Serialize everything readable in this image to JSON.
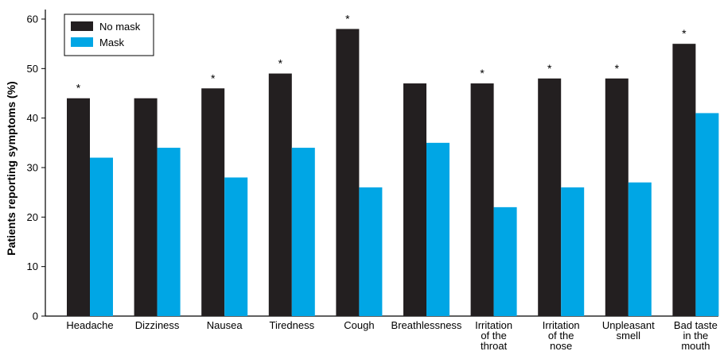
{
  "chart_data": {
    "type": "bar",
    "ylabel": "Patients reporting symptoms (%)",
    "xlabel": "",
    "ylim": [
      0,
      60
    ],
    "yticks": [
      "0",
      "10",
      "20",
      "30",
      "40",
      "50",
      "60"
    ],
    "grid": false,
    "legend_position": "top-left",
    "categories": [
      [
        "Headache"
      ],
      [
        "Dizziness"
      ],
      [
        "Nausea"
      ],
      [
        "Tiredness"
      ],
      [
        "Cough"
      ],
      [
        "Breathlessness"
      ],
      [
        "Irritation",
        "of the",
        "throat"
      ],
      [
        "Irritation",
        "of the",
        "nose"
      ],
      [
        "Unpleasant",
        "smell"
      ],
      [
        "Bad taste",
        "in the",
        "mouth"
      ]
    ],
    "series": [
      {
        "name": "No mask",
        "color": "#231f20",
        "values": [
          44,
          44,
          46,
          49,
          58,
          47,
          47,
          48,
          48,
          55
        ]
      },
      {
        "name": "Mask",
        "color": "#00a6e5",
        "values": [
          32,
          34,
          28,
          34,
          26,
          35,
          22,
          26,
          27,
          41
        ]
      }
    ],
    "significance_marker": "*",
    "significant": [
      true,
      false,
      true,
      true,
      true,
      false,
      true,
      true,
      true,
      true
    ]
  }
}
